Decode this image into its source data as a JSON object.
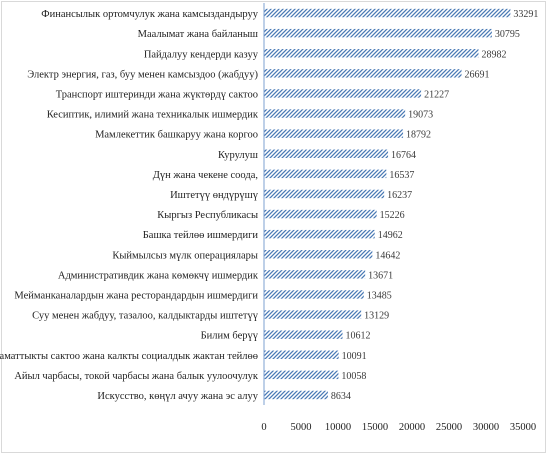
{
  "chart_data": {
    "type": "bar",
    "orientation": "horizontal",
    "categories": [
      "Финансылык ортомчулук жана камсыздандыруу",
      "Маалымат жана байланыш",
      "Пайдалуу кендерди казуу",
      "Электр энергия, газ, буу менен камсыздоо (жабдуу)",
      "Транспорт иштеринди жана жүктөрдү сактоо",
      "Кесиптик, илимий жана техникалык ишмердик",
      "Мамлекеттик башкаруу жана коргоо",
      "Курулуш",
      "Дүн жана чекене соода,",
      "Иштетүү өндүрүшү",
      "Кыргыз Республикасы",
      "Башка тейлөө ишмердиги",
      "Кыймылсыз мүлк операциялары",
      "Административдик жана көмөкчү ишмердик",
      "Мейманканалардын жана ресторандардын ишмердиги",
      "Суу менен жабдуу, тазалоо, калдыктарды иштетүү",
      "Билим берүү",
      "Саламаттыкты сактоо жана калкты социалдык жактан тейлөө",
      "Айыл чарбасы, токой чарбасы жана балык уулоочулук",
      "Искусство, көңүл ачуу жана эс алуу"
    ],
    "values": [
      33291,
      30795,
      28982,
      26691,
      21227,
      19073,
      18792,
      16764,
      16537,
      16237,
      15226,
      14962,
      14642,
      13671,
      13485,
      13129,
      10612,
      10091,
      10058,
      8634
    ],
    "value_labels": [
      "33291",
      "30795",
      "28982",
      "26691",
      "21227",
      "19073",
      "18792",
      "16764",
      "16537",
      "16237",
      "15226",
      "14962",
      "14642",
      "13671",
      "13485",
      "13129",
      "10612",
      "10091",
      "10058",
      "8634"
    ],
    "xlim": [
      0,
      35000
    ],
    "xticks": [
      0,
      5000,
      10000,
      15000,
      20000,
      25000,
      30000,
      35000
    ],
    "xtick_labels": [
      "0",
      "5000",
      "10000",
      "15000",
      "20000",
      "25000",
      "30000",
      "35000"
    ],
    "grid": false,
    "bar_style": "diagonal-hatch",
    "bar_color": "#4a7ab5",
    "axis_color": "#7da0d2"
  }
}
